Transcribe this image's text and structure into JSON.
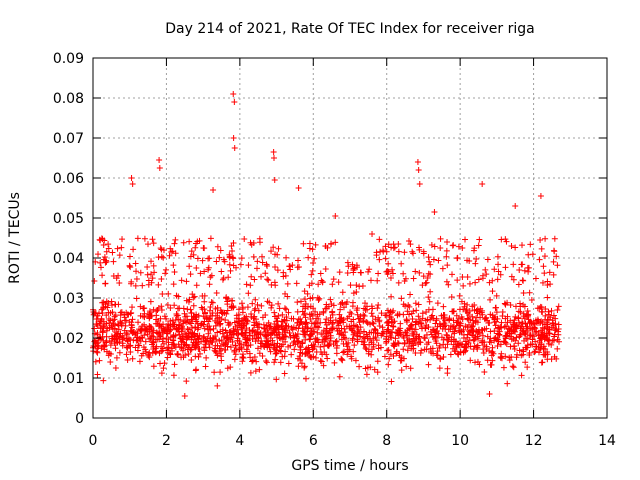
{
  "chart_data": {
    "type": "scatter",
    "title": "Day 214 of 2021, Rate Of TEC Index for receiver riga",
    "xlabel": "GPS time / hours",
    "ylabel": "ROTI / TECUs",
    "xlim": [
      0,
      14
    ],
    "ylim": [
      0,
      0.09
    ],
    "xticks": [
      "0",
      "2",
      "4",
      "6",
      "8",
      "10",
      "12",
      "14"
    ],
    "yticks": [
      "0",
      "0.01",
      "0.02",
      "0.03",
      "0.04",
      "0.05",
      "0.06",
      "0.07",
      "0.08",
      "0.09"
    ],
    "grid": true,
    "marker": "+",
    "series_color": "#ff0000",
    "x_extent": [
      0,
      12.7
    ],
    "baseline": {
      "typical_range": [
        0.01,
        0.033
      ],
      "median": 0.02
    },
    "notable_points": [
      {
        "x": 3.82,
        "y": 0.081
      },
      {
        "x": 3.85,
        "y": 0.079
      },
      {
        "x": 3.83,
        "y": 0.07
      },
      {
        "x": 3.86,
        "y": 0.0675
      },
      {
        "x": 4.92,
        "y": 0.0665
      },
      {
        "x": 4.93,
        "y": 0.065
      },
      {
        "x": 1.8,
        "y": 0.0645
      },
      {
        "x": 1.82,
        "y": 0.0625
      },
      {
        "x": 8.85,
        "y": 0.064
      },
      {
        "x": 8.87,
        "y": 0.062
      },
      {
        "x": 8.9,
        "y": 0.0585
      },
      {
        "x": 10.6,
        "y": 0.0585
      },
      {
        "x": 1.05,
        "y": 0.06
      },
      {
        "x": 1.08,
        "y": 0.0585
      },
      {
        "x": 4.95,
        "y": 0.0595
      },
      {
        "x": 5.6,
        "y": 0.0575
      },
      {
        "x": 3.27,
        "y": 0.057
      },
      {
        "x": 12.2,
        "y": 0.0555
      },
      {
        "x": 11.5,
        "y": 0.053
      },
      {
        "x": 9.3,
        "y": 0.0515
      },
      {
        "x": 6.6,
        "y": 0.0505
      },
      {
        "x": 7.6,
        "y": 0.046
      },
      {
        "x": 2.5,
        "y": 0.0055
      },
      {
        "x": 10.8,
        "y": 0.006
      }
    ]
  }
}
